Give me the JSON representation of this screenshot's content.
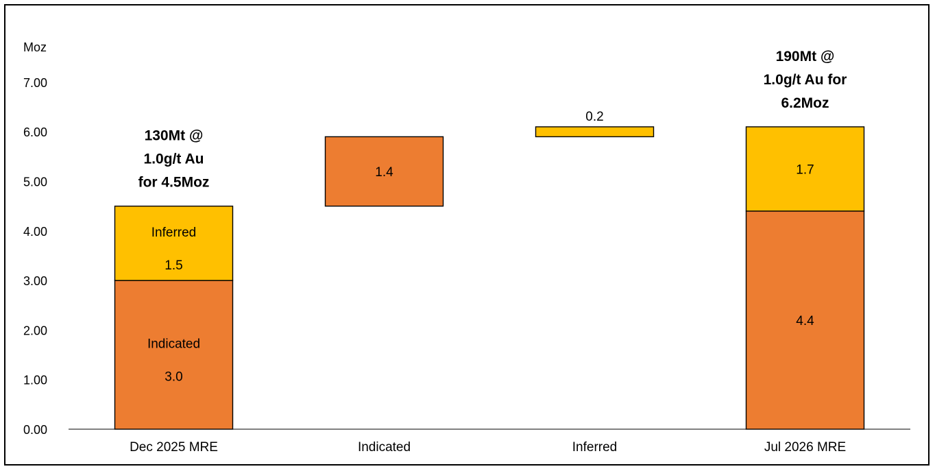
{
  "chart_data": {
    "type": "bar",
    "subtype": "waterfall-stacked",
    "y_unit_label": "Moz",
    "ylim": [
      0,
      7
    ],
    "yticks": [
      "0.00",
      "1.00",
      "2.00",
      "3.00",
      "4.00",
      "5.00",
      "6.00",
      "7.00"
    ],
    "ytick_values": [
      0,
      1,
      2,
      3,
      4,
      5,
      6,
      7
    ],
    "grid": false,
    "categories": [
      "Dec 2025 MRE",
      "Indicated",
      "Inferred",
      "Jul 2026 MRE"
    ],
    "bars": [
      {
        "category": "Dec 2025 MRE",
        "segments": [
          {
            "series": "Indicated",
            "base": 0,
            "value": 3.0,
            "label": "3.0",
            "name_label": "Indicated"
          },
          {
            "series": "Inferred",
            "base": 3.0,
            "value": 1.5,
            "label": "1.5",
            "name_label": "Inferred"
          }
        ],
        "annotation": [
          "130Mt @",
          "1.0g/t Au",
          "for 4.5Moz"
        ]
      },
      {
        "category": "Indicated",
        "segments": [
          {
            "series": "Indicated",
            "base": 4.5,
            "value": 1.4,
            "label": "1.4"
          }
        ]
      },
      {
        "category": "Inferred",
        "segments": [
          {
            "series": "Inferred",
            "base": 5.9,
            "value": 0.2,
            "label": "0.2",
            "label_position": "above"
          }
        ]
      },
      {
        "category": "Jul 2026 MRE",
        "segments": [
          {
            "series": "Indicated",
            "base": 0,
            "value": 4.4,
            "label": "4.4"
          },
          {
            "series": "Inferred",
            "base": 4.4,
            "value": 1.7,
            "label": "1.7"
          }
        ],
        "annotation": [
          "190Mt @",
          "1.0g/t Au for",
          "6.2Moz"
        ]
      }
    ],
    "colors": {
      "Indicated": "#ED7D31",
      "Inferred": "#FFC000",
      "outline": "#000000"
    }
  }
}
